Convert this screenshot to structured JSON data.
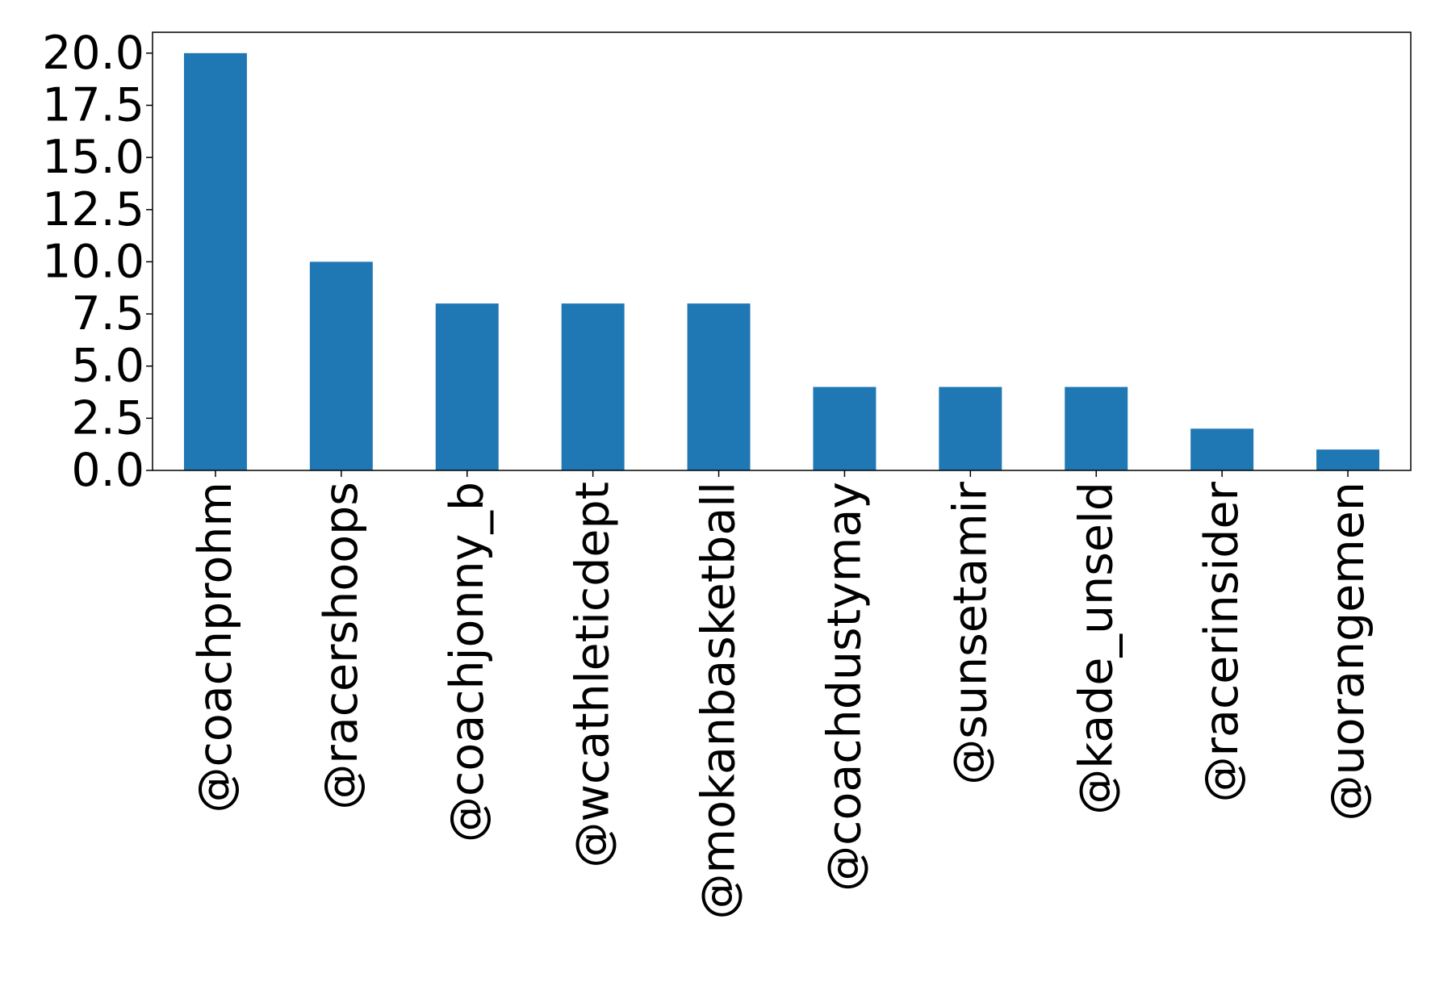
{
  "chart_data": {
    "type": "bar",
    "title": "",
    "xlabel": "",
    "ylabel": "",
    "categories": [
      "@coachprohm",
      "@racershoops",
      "@coachjonny_b",
      "@wcathleticdept",
      "@mokanbasketball",
      "@coachdustymay",
      "@sunsetamir",
      "@kade_unseld",
      "@racerinsider",
      "@uorangemen"
    ],
    "values": [
      20,
      10,
      8,
      8,
      8,
      4,
      4,
      4,
      2,
      1
    ],
    "ylim": [
      0,
      21
    ],
    "yticks": [
      0.0,
      2.5,
      5.0,
      7.5,
      10.0,
      12.5,
      15.0,
      17.5,
      20.0
    ],
    "ytick_labels": [
      "0.0",
      "2.5",
      "5.0",
      "7.5",
      "10.0",
      "12.5",
      "15.0",
      "17.5",
      "20.0"
    ],
    "bar_color": "#1f77b4",
    "grid": false,
    "legend": "none"
  }
}
